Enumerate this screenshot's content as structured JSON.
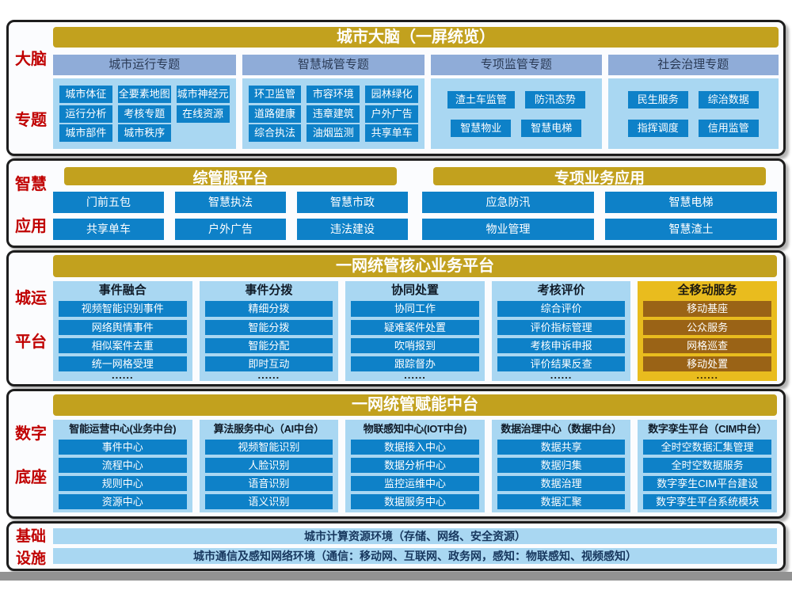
{
  "colors": {
    "gold_header": "#C2A11E",
    "gold_panel": "#E9BC1E",
    "brown_button": "#9A6316",
    "blue_button": "#0E81C8",
    "light_blue_panel": "#A9D7F2",
    "periwinkle_header": "#8FACD8",
    "rail_red": "#C00000",
    "navy_text": "#17375E",
    "section_border": "#1D1D1D"
  },
  "s1": {
    "rail1": "大脑",
    "rail2": "专题",
    "header": "城市大脑（一屏统览）",
    "g1": {
      "title": "城市运行专题",
      "r1": [
        "城市体征",
        "全要素地图",
        "城市神经元"
      ],
      "r2": [
        "运行分析",
        "考核专题",
        "在线资源"
      ],
      "r3": [
        "城市部件",
        "城市秩序"
      ]
    },
    "g2": {
      "title": "智慧城管专题",
      "r1": [
        "环卫监管",
        "市容环境",
        "园林绿化"
      ],
      "r2": [
        "道路健康",
        "违章建筑",
        "户外广告"
      ],
      "r3": [
        "综合执法",
        "油烟监测",
        "共享单车"
      ]
    },
    "g3": {
      "title": "专项监管专题",
      "r1": [
        "渣土车监管",
        "防汛态势"
      ],
      "r2": [
        "智慧物业",
        "智慧电梯"
      ]
    },
    "g4": {
      "title": "社会治理专题",
      "r1": [
        "民生服务",
        "综治数据"
      ],
      "r2": [
        "指挥调度",
        "信用监管"
      ]
    }
  },
  "s2": {
    "rail1": "智慧",
    "rail2": "应用",
    "left": {
      "header": "综管服平台",
      "r1": [
        "门前五包",
        "智慧执法",
        "智慧市政"
      ],
      "r2": [
        "共享单车",
        "户外广告",
        "违法建设"
      ]
    },
    "right": {
      "header": "专项业务应用",
      "r1": [
        "应急防汛",
        "智慧电梯"
      ],
      "r2": [
        "物业管理",
        "智慧渣土"
      ]
    }
  },
  "s3": {
    "rail1": "城运",
    "rail2": "平台",
    "header": "一网统管核心业务平台",
    "dots": "......",
    "p1": {
      "title": "事件融合",
      "items": [
        "视频智能识别事件",
        "网络舆情事件",
        "相似案件去重",
        "统一网格受理"
      ]
    },
    "p2": {
      "title": "事件分拨",
      "items": [
        "精细分拨",
        "智能分拨",
        "智能分配",
        "即时互动"
      ]
    },
    "p3": {
      "title": "协同处置",
      "items": [
        "协同工作",
        "疑难案件处置",
        "吹哨报到",
        "跟踪督办"
      ]
    },
    "p4": {
      "title": "考核评价",
      "items": [
        "综合评价",
        "评价指标管理",
        "考核申诉申报",
        "评价结果反查"
      ]
    },
    "p5": {
      "title": "全移动服务",
      "items": [
        "移动基座",
        "公众服务",
        "网格巡查",
        "移动处置"
      ]
    }
  },
  "s4": {
    "rail1": "数字",
    "rail2": "底座",
    "header": "一网统管赋能中台",
    "p1": {
      "title": "智能运营中心(业务中台)",
      "items": [
        "事件中心",
        "流程中心",
        "规则中心",
        "资源中心"
      ]
    },
    "p2": {
      "title": "算法服务中心（AI中台）",
      "items": [
        "视频智能识别",
        "人脸识别",
        "语音识别",
        "语义识别"
      ]
    },
    "p3": {
      "title": "物联感知中心(IOT中台)",
      "items": [
        "数据接入中心",
        "数据分析中心",
        "监控运维中心",
        "数据服务中心"
      ]
    },
    "p4": {
      "title": "数据治理中心（数据中台）",
      "items": [
        "数据共享",
        "数据归集",
        "数据治理",
        "数据汇聚"
      ]
    },
    "p5": {
      "title": "数字孪生平台（CIM中台）",
      "items": [
        "全时空数据汇集管理",
        "全时空数据服务",
        "数字孪生CIM平台建设",
        "数字孪生平台系统模块"
      ]
    }
  },
  "s5": {
    "rail1": "基础",
    "rail2": "设施",
    "bar1": "城市计算资源环境（存储、网络、安全资源）",
    "bar2": "城市通信及感知网络环境（通信：移动网、互联网、政务网，感知：物联感知、视频感知）"
  }
}
